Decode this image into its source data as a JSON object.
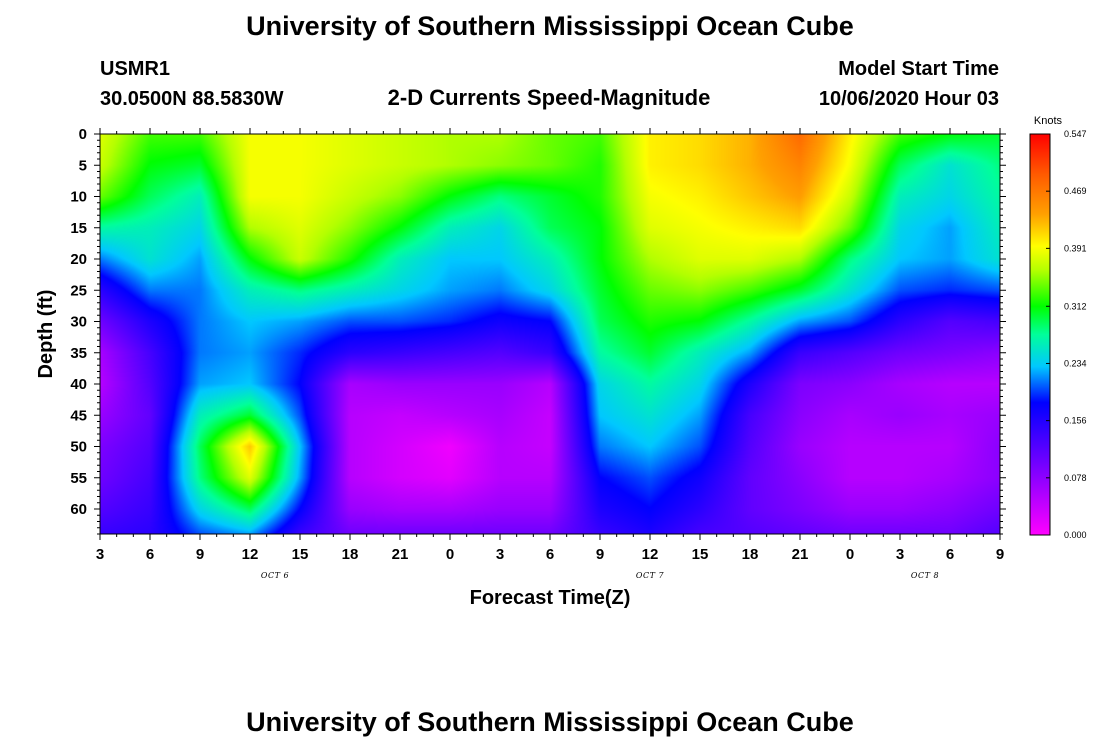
{
  "header": {
    "title": "University of Southern Mississippi Ocean Cube",
    "station": "USMR1",
    "coords": "30.0500N 88.5830W",
    "subtitle": "2-D Currents Speed-Magnitude",
    "model_label": "Model Start Time",
    "model_time": "10/06/2020 Hour 03"
  },
  "footer": {
    "title": "University of Southern Mississippi Ocean Cube"
  },
  "chart_data": {
    "type": "heatmap",
    "title": "2-D Currents Speed-Magnitude",
    "xlabel": "Forecast Time(Z)",
    "ylabel": "Depth (ft)",
    "x_ticks": [
      "3",
      "6",
      "9",
      "12",
      "15",
      "18",
      "21",
      "0",
      "3",
      "6",
      "9",
      "12",
      "15",
      "18",
      "21",
      "0",
      "3",
      "6",
      "9"
    ],
    "x_hours": [
      0,
      3,
      6,
      9,
      12,
      15,
      18,
      21,
      24,
      27,
      30,
      33,
      36,
      39,
      42,
      45,
      48,
      51,
      54
    ],
    "day_labels": [
      {
        "label": "OCT 6",
        "hour": 10.5
      },
      {
        "label": "OCT 7",
        "hour": 33
      },
      {
        "label": "OCT 8",
        "hour": 49.5
      }
    ],
    "y_ticks": [
      0,
      5,
      10,
      15,
      20,
      25,
      30,
      35,
      40,
      45,
      50,
      55,
      60
    ],
    "ylim": [
      0,
      64
    ],
    "colorbar": {
      "unit": "Knots",
      "ticks": [
        "0.547",
        "0.469",
        "0.391",
        "0.312",
        "0.234",
        "0.156",
        "0.078",
        "0.000"
      ],
      "min": 0.0,
      "max": 0.547
    },
    "grid": {
      "times": [
        0,
        3,
        6,
        9,
        12,
        15,
        18,
        21,
        24,
        27,
        30,
        33,
        36,
        39,
        42,
        45,
        48,
        51,
        54
      ],
      "depths": [
        0,
        5,
        10,
        15,
        20,
        25,
        30,
        35,
        40,
        45,
        50,
        55,
        60,
        64
      ],
      "speed": [
        [
          0.38,
          0.33,
          0.33,
          0.39,
          0.39,
          0.38,
          0.37,
          0.36,
          0.36,
          0.34,
          0.33,
          0.4,
          0.41,
          0.43,
          0.48,
          0.4,
          0.33,
          0.31,
          0.3
        ],
        [
          0.37,
          0.31,
          0.3,
          0.39,
          0.39,
          0.38,
          0.37,
          0.36,
          0.35,
          0.34,
          0.32,
          0.4,
          0.41,
          0.43,
          0.46,
          0.39,
          0.29,
          0.25,
          0.28
        ],
        [
          0.34,
          0.29,
          0.26,
          0.39,
          0.39,
          0.37,
          0.35,
          0.31,
          0.28,
          0.3,
          0.32,
          0.39,
          0.4,
          0.42,
          0.44,
          0.37,
          0.26,
          0.24,
          0.27
        ],
        [
          0.27,
          0.26,
          0.24,
          0.36,
          0.38,
          0.35,
          0.31,
          0.26,
          0.24,
          0.29,
          0.31,
          0.38,
          0.39,
          0.4,
          0.41,
          0.34,
          0.24,
          0.22,
          0.26
        ],
        [
          0.21,
          0.25,
          0.22,
          0.31,
          0.37,
          0.32,
          0.26,
          0.23,
          0.23,
          0.26,
          0.31,
          0.36,
          0.38,
          0.38,
          0.36,
          0.28,
          0.23,
          0.22,
          0.25
        ],
        [
          0.15,
          0.21,
          0.21,
          0.26,
          0.28,
          0.26,
          0.24,
          0.22,
          0.21,
          0.24,
          0.3,
          0.34,
          0.35,
          0.33,
          0.3,
          0.25,
          0.2,
          0.19,
          0.2
        ],
        [
          0.1,
          0.16,
          0.21,
          0.23,
          0.22,
          0.2,
          0.2,
          0.19,
          0.17,
          0.18,
          0.29,
          0.32,
          0.31,
          0.27,
          0.22,
          0.2,
          0.15,
          0.12,
          0.13
        ],
        [
          0.06,
          0.13,
          0.21,
          0.22,
          0.19,
          0.15,
          0.14,
          0.13,
          0.12,
          0.14,
          0.27,
          0.3,
          0.26,
          0.22,
          0.14,
          0.12,
          0.1,
          0.09,
          0.08
        ],
        [
          0.05,
          0.12,
          0.22,
          0.23,
          0.18,
          0.06,
          0.07,
          0.07,
          0.07,
          0.05,
          0.24,
          0.27,
          0.24,
          0.16,
          0.09,
          0.08,
          0.06,
          0.05,
          0.05
        ],
        [
          0.07,
          0.11,
          0.26,
          0.3,
          0.2,
          0.05,
          0.04,
          0.05,
          0.06,
          0.04,
          0.23,
          0.25,
          0.22,
          0.13,
          0.08,
          0.06,
          0.07,
          0.06,
          0.07
        ],
        [
          0.09,
          0.12,
          0.29,
          0.42,
          0.23,
          0.05,
          0.03,
          0.01,
          0.05,
          0.04,
          0.21,
          0.23,
          0.2,
          0.12,
          0.07,
          0.05,
          0.05,
          0.05,
          0.08
        ],
        [
          0.1,
          0.13,
          0.28,
          0.38,
          0.22,
          0.05,
          0.03,
          0.02,
          0.05,
          0.05,
          0.18,
          0.2,
          0.17,
          0.11,
          0.08,
          0.05,
          0.05,
          0.06,
          0.08
        ],
        [
          0.12,
          0.14,
          0.24,
          0.29,
          0.18,
          0.07,
          0.06,
          0.06,
          0.07,
          0.07,
          0.16,
          0.18,
          0.15,
          0.11,
          0.09,
          0.07,
          0.07,
          0.08,
          0.1
        ],
        [
          0.14,
          0.15,
          0.2,
          0.22,
          0.14,
          0.1,
          0.1,
          0.1,
          0.1,
          0.1,
          0.14,
          0.16,
          0.13,
          0.12,
          0.11,
          0.1,
          0.1,
          0.1,
          0.12
        ]
      ]
    }
  }
}
